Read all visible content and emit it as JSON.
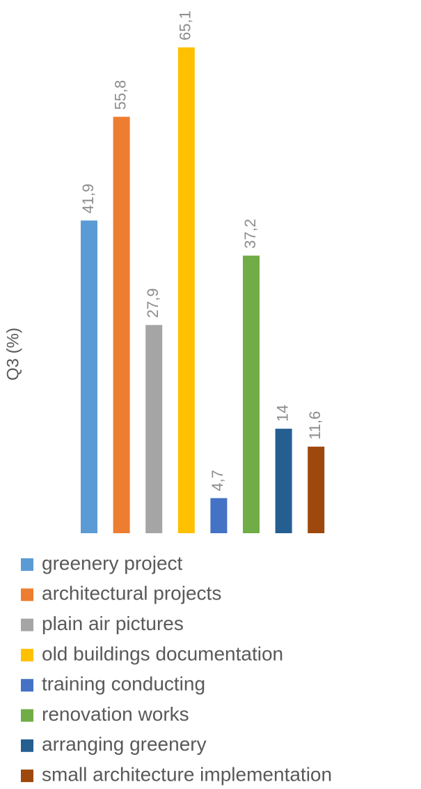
{
  "chart_data": {
    "type": "bar",
    "y_label": "Q3 (%)",
    "categories": [
      null
    ],
    "series": [
      {
        "name": "greenery project",
        "color": "#5b9bd5",
        "values": [
          41.9
        ],
        "value_labels": [
          "41,9"
        ]
      },
      {
        "name": "architectural projects",
        "color": "#ed7d31",
        "values": [
          55.8
        ],
        "value_labels": [
          "55,8"
        ]
      },
      {
        "name": "plain air pictures",
        "color": "#a5a5a5",
        "values": [
          27.9
        ],
        "value_labels": [
          "27,9"
        ]
      },
      {
        "name": "old buildings documentation",
        "color": "#ffc000",
        "values": [
          65.1
        ],
        "value_labels": [
          "65,1"
        ]
      },
      {
        "name": "training conducting",
        "color": "#4472c4",
        "values": [
          4.7
        ],
        "value_labels": [
          "4,7"
        ]
      },
      {
        "name": "renovation works",
        "color": "#70ad47",
        "values": [
          37.2
        ],
        "value_labels": [
          "37,2"
        ]
      },
      {
        "name": "arranging greenery",
        "color": "#255e91",
        "values": [
          14
        ]
      },
      {
        "name": "small architecture implementation",
        "color": "#9e480e",
        "values": [
          11.6
        ],
        "value_labels": [
          "11,6"
        ]
      }
    ]
  }
}
